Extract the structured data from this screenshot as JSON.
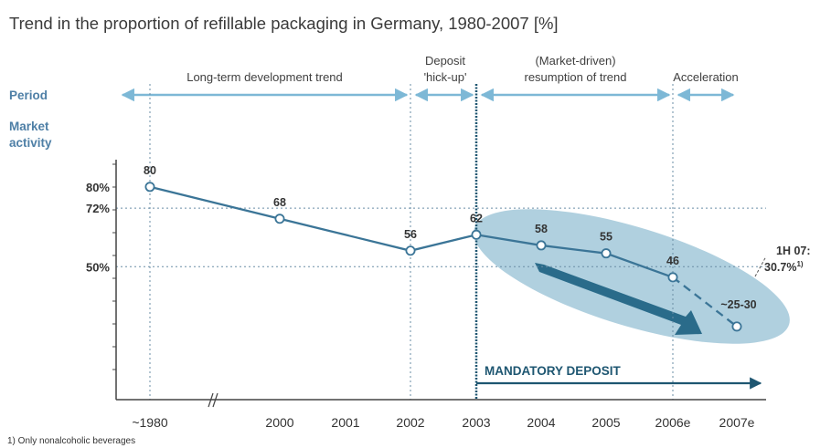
{
  "title": "Trend in the proportion of refillable packaging in Germany, 1980-2007 [%]",
  "row_labels": {
    "period": "Period",
    "market_line1": "Market",
    "market_line2": "activity"
  },
  "periods": [
    {
      "lines": [
        "Long-term development trend"
      ],
      "from": "1980",
      "to": "2002"
    },
    {
      "lines": [
        "Deposit",
        "'hick-up'"
      ],
      "from": "2002",
      "to": "2003"
    },
    {
      "lines": [
        "(Market-driven)",
        "resumption of trend"
      ],
      "from": "2003",
      "to": "2006e"
    },
    {
      "lines": [
        "Acceleration"
      ],
      "from": "2006e",
      "to": "2007e"
    }
  ],
  "chart_data": {
    "type": "line",
    "x": [
      "~1980",
      "2000",
      "2001",
      "2002",
      "2003",
      "2004",
      "2005",
      "2006e",
      "2007e"
    ],
    "y_ticks": [
      "80%",
      "72%",
      "50%"
    ],
    "series": [
      {
        "points": [
          {
            "x": "~1980",
            "y": 80,
            "label": "80"
          },
          {
            "x": "2000",
            "y": 68,
            "label": "68"
          },
          {
            "x": "2002",
            "y": 56,
            "label": "56"
          },
          {
            "x": "2003",
            "y": 62,
            "label": "62"
          },
          {
            "x": "2004",
            "y": 58,
            "label": "58"
          },
          {
            "x": "2005",
            "y": 55,
            "label": "55"
          },
          {
            "x": "2006e",
            "y": 46,
            "label": "46"
          },
          {
            "x": "2007e",
            "y": 27.5,
            "label": "~25-30"
          }
        ],
        "dashed_from": "2006e",
        "color": "#3b7597"
      }
    ],
    "reference_lines_y": [
      72,
      50
    ],
    "annotation": {
      "line1": "1H 07:",
      "line2": "30.7%",
      "sup": "1)"
    },
    "mandatory_deposit": {
      "label": "MANDATORY DEPOSIT",
      "from": "2003"
    },
    "axis_break": true,
    "ylim": [
      0,
      90
    ],
    "highlight_color": "#7fb5cc"
  },
  "footnote": "1) Only nonalcoholic beverages",
  "colors": {
    "line": "#3b7597",
    "arrow": "#7db8d6",
    "ellipse": "#a7cbdc",
    "big_arrow": "#2a6b8a",
    "grid": "#6a8ea6"
  }
}
